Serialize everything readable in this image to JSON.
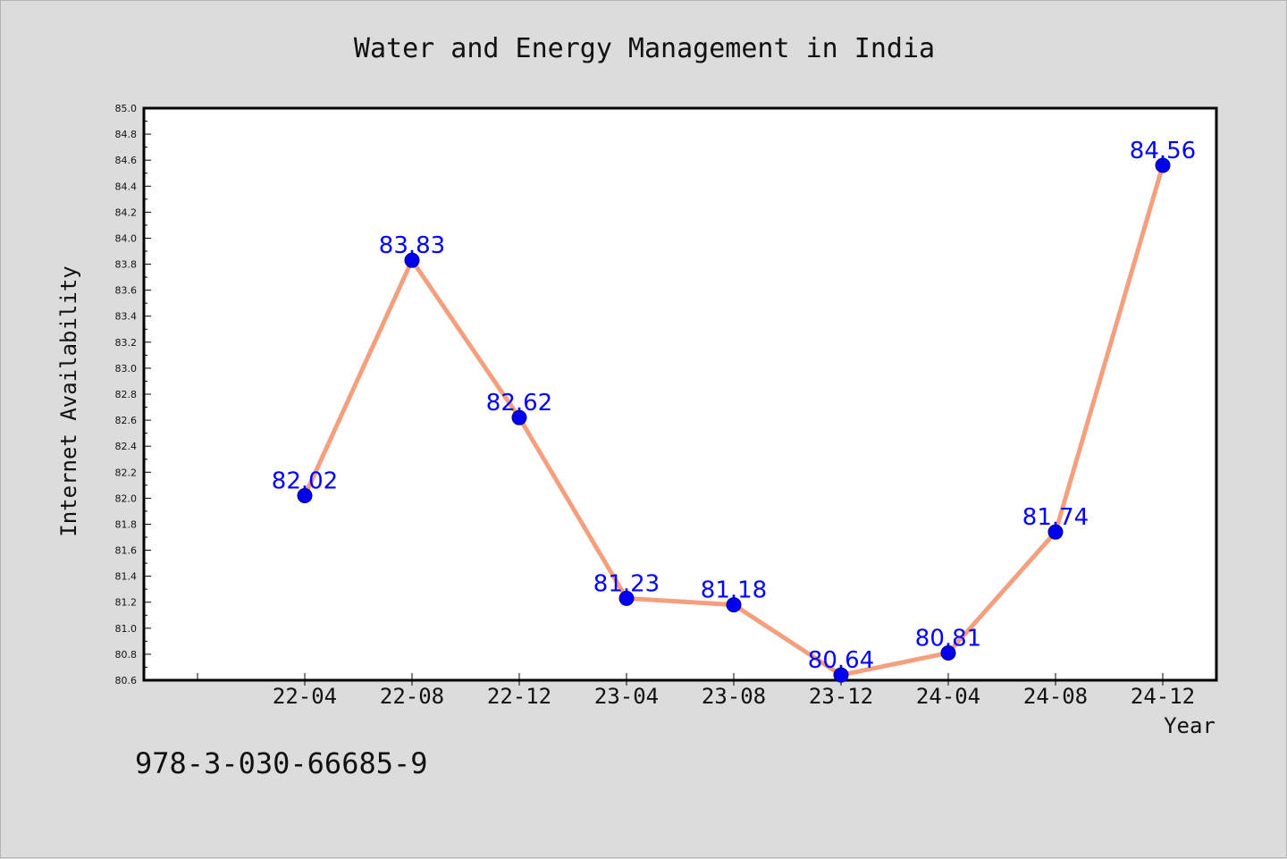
{
  "chart_data": {
    "type": "line",
    "title": "Water and Energy Management in India",
    "xlabel": "Year",
    "ylabel": "Internet Availability",
    "categories": [
      "22-04",
      "22-08",
      "22-12",
      "23-04",
      "23-08",
      "23-12",
      "24-04",
      "24-08",
      "24-12"
    ],
    "values": [
      82.02,
      83.83,
      82.62,
      81.23,
      81.18,
      80.64,
      80.81,
      81.74,
      84.56
    ],
    "data_labels": [
      "82.02",
      "83.83",
      "82.62",
      "81.23",
      "81.18",
      "80.64",
      "80.81",
      "81.74",
      "84.56"
    ],
    "ylim": [
      80.6,
      85.0
    ],
    "yticks": [
      "80.6",
      "80.8",
      "81.0",
      "81.2",
      "81.4",
      "81.6",
      "81.8",
      "82.0",
      "82.2",
      "82.4",
      "82.6",
      "82.8",
      "83.0",
      "83.2",
      "83.4",
      "83.6",
      "83.8",
      "84.0",
      "84.2",
      "84.4",
      "84.6",
      "84.8",
      "85.0"
    ],
    "grid": false,
    "legend": "none",
    "colors": {
      "line": "#f4a07e",
      "marker": "#0000ee",
      "label": "#0000ff",
      "background": "#dcdcdc",
      "plot_area": "#ffffff"
    }
  },
  "footer": {
    "text": "978-3-030-66685-9"
  }
}
